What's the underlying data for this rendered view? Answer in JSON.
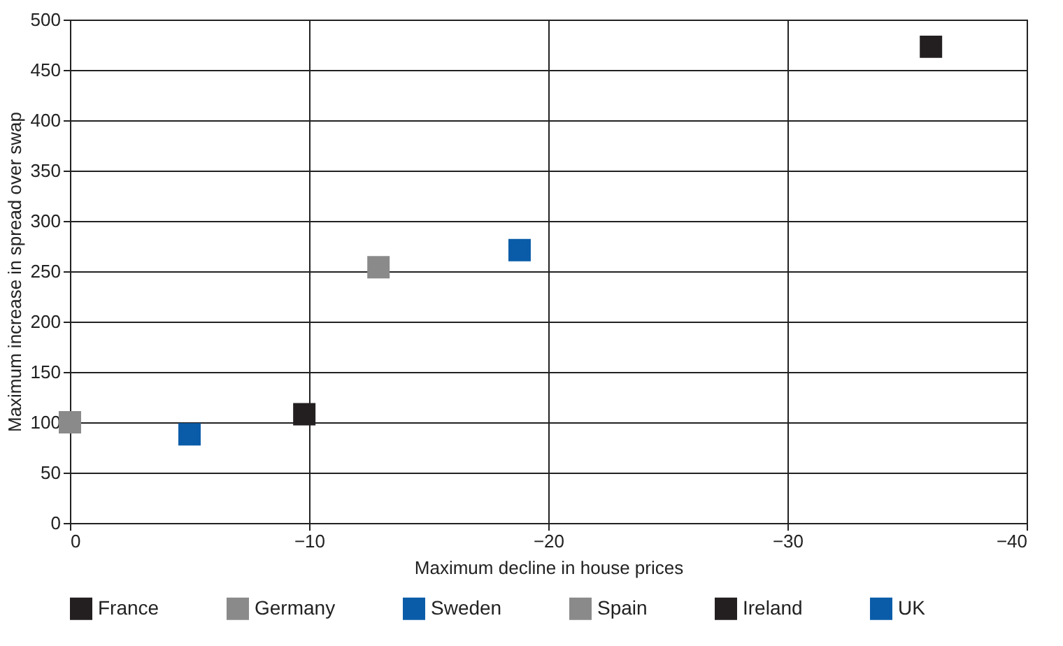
{
  "chart_data": {
    "type": "scatter",
    "xlabel": "Maximum decline in house prices",
    "ylabel": "Maximum increase in spread over swap",
    "xlim": [
      0,
      -40
    ],
    "xticks": [
      0,
      -10,
      -20,
      -30,
      -40
    ],
    "ylim": [
      0,
      500
    ],
    "yticks": [
      0,
      50,
      100,
      150,
      200,
      250,
      300,
      350,
      400,
      450,
      500
    ],
    "grid": true,
    "legend": "bottom",
    "marker": "square",
    "series": [
      {
        "name": "France",
        "color": "#231f20",
        "x": [
          -9.8
        ],
        "values": [
          108
        ]
      },
      {
        "name": "Germany",
        "color": "#8a8a8a",
        "x": [
          0
        ],
        "values": [
          100
        ]
      },
      {
        "name": "Sweden",
        "color": "#0a5ca8",
        "x": [
          -5
        ],
        "values": [
          88
        ]
      },
      {
        "name": "Spain",
        "color": "#8a8a8a",
        "x": [
          -12.9
        ],
        "values": [
          254
        ]
      },
      {
        "name": "Ireland",
        "color": "#231f20",
        "x": [
          -36
        ],
        "values": [
          473
        ]
      },
      {
        "name": "UK",
        "color": "#0a5ca8",
        "x": [
          -18.8
        ],
        "values": [
          271
        ]
      }
    ]
  }
}
